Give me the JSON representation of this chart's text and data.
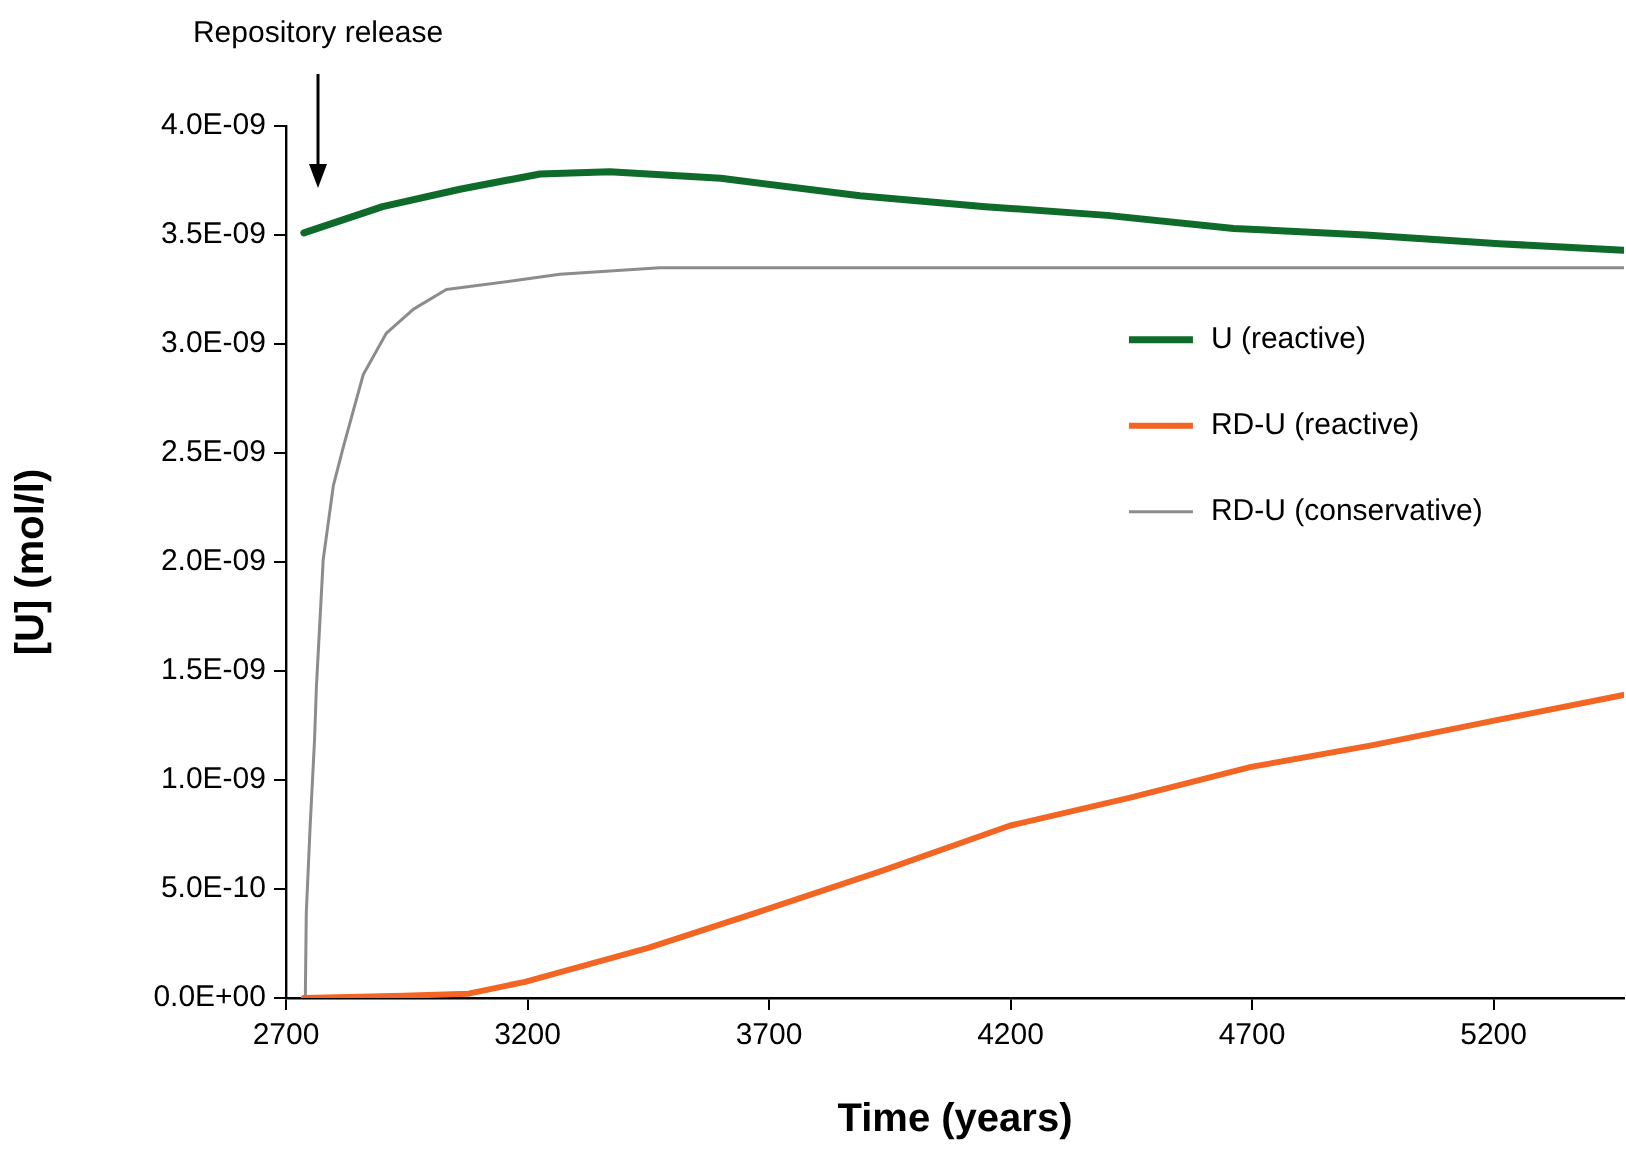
{
  "chart_data": {
    "type": "line",
    "xlabel": "Time (years)",
    "ylabel": "[U] (mol/l)",
    "xlim": [
      2700,
      5470
    ],
    "xticks": [
      2700,
      3200,
      3700,
      4200,
      4700,
      5200
    ],
    "ylim": [
      0,
      4e-09
    ],
    "yticks": [
      {
        "value": 0,
        "label": "0.0E+00"
      },
      {
        "value": 5e-10,
        "label": "5.0E-10"
      },
      {
        "value": 1e-09,
        "label": "1.0E-09"
      },
      {
        "value": 1.5e-09,
        "label": "1.5E-09"
      },
      {
        "value": 2e-09,
        "label": "2.0E-09"
      },
      {
        "value": 2.5e-09,
        "label": "2.5E-09"
      },
      {
        "value": 3e-09,
        "label": "3.0E-09"
      },
      {
        "value": 3.5e-09,
        "label": "3.5E-09"
      },
      {
        "value": 4e-09,
        "label": "4.0E-09"
      }
    ],
    "grid": false,
    "legend": "right",
    "marker": "none",
    "line_style": "solid",
    "annotations": [
      "Repository release"
    ],
    "series": [
      {
        "name": "U (reactive)",
        "color": "#0e6b2a",
        "x": [
          2737,
          2900,
          3060,
          3226,
          3370,
          3600,
          3888,
          4148,
          4400,
          4662,
          4935,
          5212,
          5469
        ],
        "values": [
          3.51e-09,
          3.63e-09,
          3.71e-09,
          3.78e-09,
          3.79e-09,
          3.76e-09,
          3.68e-09,
          3.63e-09,
          3.59e-09,
          3.53e-09,
          3.5e-09,
          3.46e-09,
          3.43e-09
        ]
      },
      {
        "name": "RD-U (reactive)",
        "color": "#f26522",
        "x": [
          2737,
          2943,
          3078,
          3195,
          3450,
          3693,
          3929,
          4198,
          4450,
          4698,
          4950,
          5196,
          5469
        ],
        "values": [
          0,
          1e-11,
          2e-11,
          7.4e-11,
          2.3e-10,
          4.05e-10,
          5.8e-10,
          7.9e-10,
          9.2e-10,
          1.06e-09,
          1.16e-09,
          1.27e-09,
          1.39e-09
        ]
      },
      {
        "name": "RD-U (conservative)",
        "color": "#8c8c8c",
        "x": [
          2740,
          2742,
          2750,
          2759,
          2763,
          2777,
          2798,
          2819,
          2860,
          2908,
          2964,
          3032,
          3171,
          3267,
          3474,
          5469
        ],
        "values": [
          0,
          3.9e-10,
          7.9e-10,
          1.18e-09,
          1.43e-09,
          2.01e-09,
          2.35e-09,
          2.53e-09,
          2.86e-09,
          3.05e-09,
          3.16e-09,
          3.25e-09,
          3.29e-09,
          3.32e-09,
          3.35e-09,
          3.35e-09
        ]
      }
    ]
  }
}
